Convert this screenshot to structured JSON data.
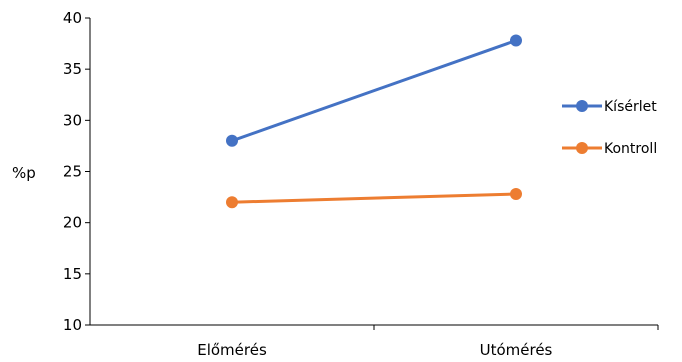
{
  "chart_data": {
    "type": "line",
    "categories": [
      "Előmérés",
      "Utómérés"
    ],
    "series": [
      {
        "name": "Kísérlet",
        "values": [
          28,
          37.8
        ],
        "color": "#4472C4"
      },
      {
        "name": "Kontroll",
        "values": [
          22,
          22.8
        ],
        "color": "#ED7D31"
      }
    ],
    "ylabel": "%p",
    "ylim": [
      10,
      40
    ],
    "yticks": [
      10,
      15,
      20,
      25,
      30,
      35,
      40
    ],
    "grid": false,
    "legend": "right"
  }
}
